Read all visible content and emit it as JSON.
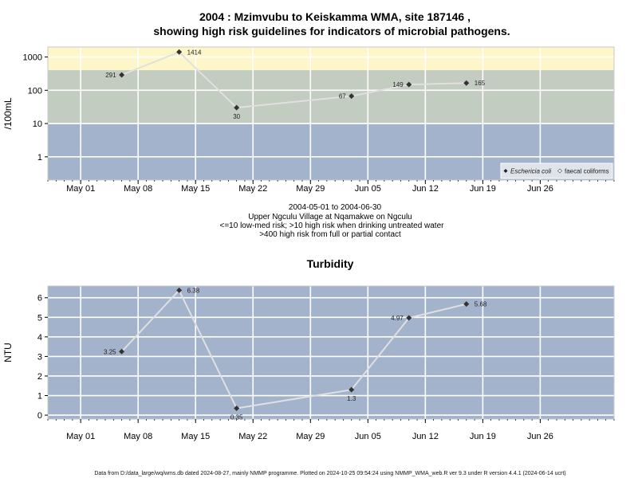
{
  "title_line1": "2004 : Mzimvubu to Keiskamma WMA, site 187146 ,",
  "title_line2": "showing high risk guidelines for indicators of microbial pathogens.",
  "sub_lines": [
    "2004-05-01 to 2004-06-30",
    "Upper Ngculu Village at Nqamakwe on Ngculu",
    "<=10 low-med risk; >10 high risk when drinking untreated water",
    ">400 high risk from full or partial contact"
  ],
  "turbidity_title": "Turbidity",
  "footer": "Data from D:/data_large/wq/wms.db dated 2024-08-27, mainly NMMP programme. Plotted on 2024-10-25 09:54:24 using NMMP_WMA_web.R ver 9.3 under R version 4.4.1 (2024-06-14 ucrt)",
  "colors": {
    "panel_bg": "#a3b3cb",
    "band_mid": "#c3ccc0",
    "band_high": "#fdf6c8",
    "line": "#e0e0e0",
    "point": "#333333"
  },
  "chart_data": [
    {
      "type": "line",
      "ylabel": "/100mL",
      "y_scale": "log",
      "ylim": [
        0.2,
        2000
      ],
      "xlim": [
        "2004-04-27",
        "2004-07-05"
      ],
      "yticks": [
        1,
        10,
        100,
        1000
      ],
      "ytick_labels": [
        "1",
        "10",
        "100",
        "1000"
      ],
      "xticks": [
        "2004-05-01",
        "2004-05-08",
        "2004-05-15",
        "2004-05-22",
        "2004-05-29",
        "2004-06-05",
        "2004-06-12",
        "2004-06-19",
        "2004-06-26"
      ],
      "xtick_labels": [
        "May 01",
        "May 08",
        "May 15",
        "May 22",
        "May 29",
        "Jun 05",
        "Jun 12",
        "Jun 19",
        "Jun 26"
      ],
      "bands": [
        {
          "from": 0.2,
          "to": 10,
          "color": "#a3b3cb"
        },
        {
          "from": 10,
          "to": 400,
          "color": "#c3ccc0"
        },
        {
          "from": 400,
          "to": 2000,
          "color": "#fdf6c8"
        }
      ],
      "series": [
        {
          "name": "Eschericia coli",
          "x": [
            "2004-05-06",
            "2004-05-13",
            "2004-05-20",
            "2004-06-03",
            "2004-06-10",
            "2004-06-17"
          ],
          "y": [
            291,
            1414,
            30,
            67,
            149,
            165
          ],
          "labels": [
            "291",
            "1414",
            "30",
            "67",
            "149",
            "165"
          ]
        }
      ],
      "legend": [
        "Eschericia coli",
        "faecal coliforms"
      ],
      "legend_position": "bottom-right"
    },
    {
      "type": "line",
      "title": "Turbidity",
      "ylabel": "NTU",
      "ylim": [
        -0.2,
        6.6
      ],
      "xlim": [
        "2004-04-27",
        "2004-07-05"
      ],
      "yticks": [
        0,
        1,
        2,
        3,
        4,
        5,
        6
      ],
      "ytick_labels": [
        "0",
        "1",
        "2",
        "3",
        "4",
        "5",
        "6"
      ],
      "xticks": [
        "2004-05-01",
        "2004-05-08",
        "2004-05-15",
        "2004-05-22",
        "2004-05-29",
        "2004-06-05",
        "2004-06-12",
        "2004-06-19",
        "2004-06-26"
      ],
      "xtick_labels": [
        "May 01",
        "May 08",
        "May 15",
        "May 22",
        "May 29",
        "Jun 05",
        "Jun 12",
        "Jun 19",
        "Jun 26"
      ],
      "series": [
        {
          "x": [
            "2004-05-06",
            "2004-05-13",
            "2004-05-20",
            "2004-06-03",
            "2004-06-10",
            "2004-06-17"
          ],
          "y": [
            3.25,
            6.38,
            0.35,
            1.3,
            4.97,
            5.68
          ],
          "labels": [
            "3.25",
            "6.38",
            "0.35",
            "1.3",
            "4.97",
            "5.68"
          ]
        }
      ]
    }
  ]
}
